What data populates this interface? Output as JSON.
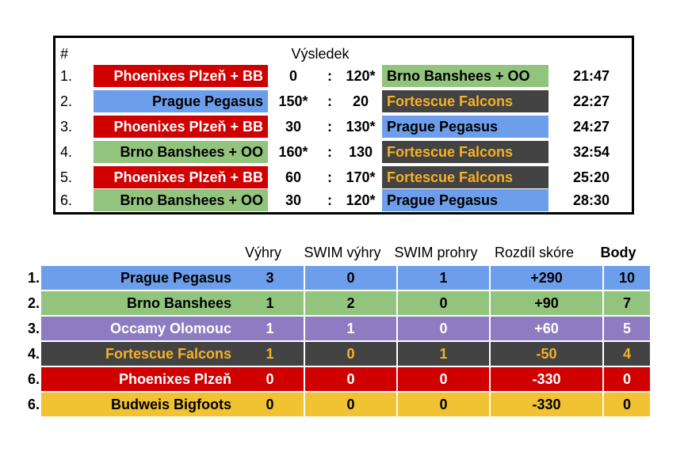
{
  "matches": {
    "header_hash": "#",
    "header_result": "Výsledek",
    "rows": [
      {
        "num": "1.",
        "home": "Phoenixes Plzeň + BB",
        "home_color": "red",
        "s1": "0",
        "sep": ":",
        "s2": "120*",
        "away": "Brno Banshees + OO",
        "away_color": "green",
        "time": "21:47"
      },
      {
        "num": "2.",
        "home": "Prague Pegasus",
        "home_color": "blue",
        "s1": "150*",
        "sep": ":",
        "s2": "20",
        "away": "Fortescue Falcons",
        "away_color": "dark",
        "time": "22:27"
      },
      {
        "num": "3.",
        "home": "Phoenixes Plzeň + BB",
        "home_color": "red",
        "s1": "30",
        "sep": ":",
        "s2": "130*",
        "away": "Prague Pegasus",
        "away_color": "blue",
        "time": "24:27"
      },
      {
        "num": "4.",
        "home": "Brno Banshees + OO",
        "home_color": "green",
        "s1": "160*",
        "sep": ":",
        "s2": "130",
        "away": "Fortescue Falcons",
        "away_color": "dark",
        "time": "32:54"
      },
      {
        "num": "5.",
        "home": "Phoenixes Plzeň + BB",
        "home_color": "red",
        "s1": "60",
        "sep": ":",
        "s2": "170*",
        "away": "Fortescue Falcons",
        "away_color": "dark",
        "time": "25:20"
      },
      {
        "num": "6.",
        "home": "Brno Banshees + OO",
        "home_color": "green",
        "s1": "30",
        "sep": ":",
        "s2": "120*",
        "away": "Prague Pegasus",
        "away_color": "blue",
        "time": "28:30"
      }
    ]
  },
  "standings": {
    "headers": {
      "wins": "Výhry",
      "swim_wins": "SWIM výhry",
      "swim_losses": "SWIM prohry",
      "score_diff": "Rozdíl skóre",
      "points": "Body"
    },
    "rows": [
      {
        "rank": "1.",
        "team": "Prague Pegasus",
        "color": "blue",
        "wins": "3",
        "swim_wins": "0",
        "swim_losses": "1",
        "diff": "+290",
        "points": "10"
      },
      {
        "rank": "2.",
        "team": "Brno Banshees",
        "color": "green",
        "wins": "1",
        "swim_wins": "2",
        "swim_losses": "0",
        "diff": "+90",
        "points": "7"
      },
      {
        "rank": "3.",
        "team": "Occamy Olomouc",
        "color": "purple",
        "wins": "1",
        "swim_wins": "1",
        "swim_losses": "0",
        "diff": "+60",
        "points": "5"
      },
      {
        "rank": "4.",
        "team": "Fortescue Falcons",
        "color": "dark",
        "wins": "1",
        "swim_wins": "0",
        "swim_losses": "1",
        "diff": "-50",
        "points": "4"
      },
      {
        "rank": "6.",
        "team": "Phoenixes Plzeň",
        "color": "red",
        "wins": "0",
        "swim_wins": "0",
        "swim_losses": "0",
        "diff": "-330",
        "points": "0"
      },
      {
        "rank": "6.",
        "team": "Budweis Bigfoots",
        "color": "yellow",
        "wins": "0",
        "swim_wins": "0",
        "swim_losses": "0",
        "diff": "-330",
        "points": "0"
      }
    ]
  },
  "colors": {
    "red": "#d00000",
    "blue": "#6d9eeb",
    "green": "#93c47d",
    "dark": "#434343",
    "purple": "#8e7cc3",
    "yellow": "#f1c232",
    "falcons_text": "#f6b126"
  }
}
